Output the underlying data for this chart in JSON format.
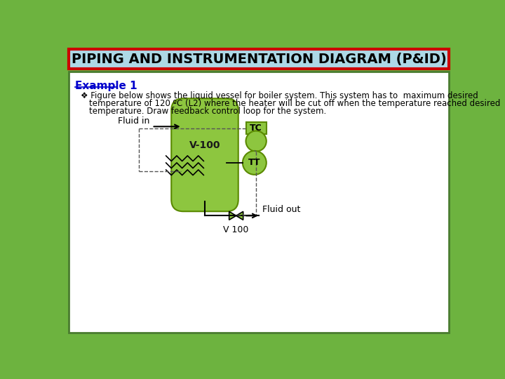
{
  "title": "PIPING AND INSTRUMENTATION DIAGRAM (P&ID)",
  "title_bg": "#add8e6",
  "title_border": "#cc0000",
  "outer_bg": "#6db33f",
  "inner_bg": "#ffffff",
  "example_label": "Example 1",
  "body_text_line1": "Figure below shows the liquid vessel for boiler system. This system has to  maximum desired",
  "body_text_line2": "temperature of 120 ºC (L2) where the heater will be cut off when the temperature reached desired",
  "body_text_line3": "temperature. Draw feedback control loop for the system.",
  "vessel_color": "#8dc63f",
  "vessel_edge": "#5a8a00",
  "vessel_label": "V-100",
  "tc_label": "TC",
  "tt_label": "TT",
  "valve_label": "V 100",
  "fluid_in_label": "Fluid in",
  "fluid_out_label": "Fluid out",
  "dash_color": "#555555",
  "line_color": "#000000"
}
